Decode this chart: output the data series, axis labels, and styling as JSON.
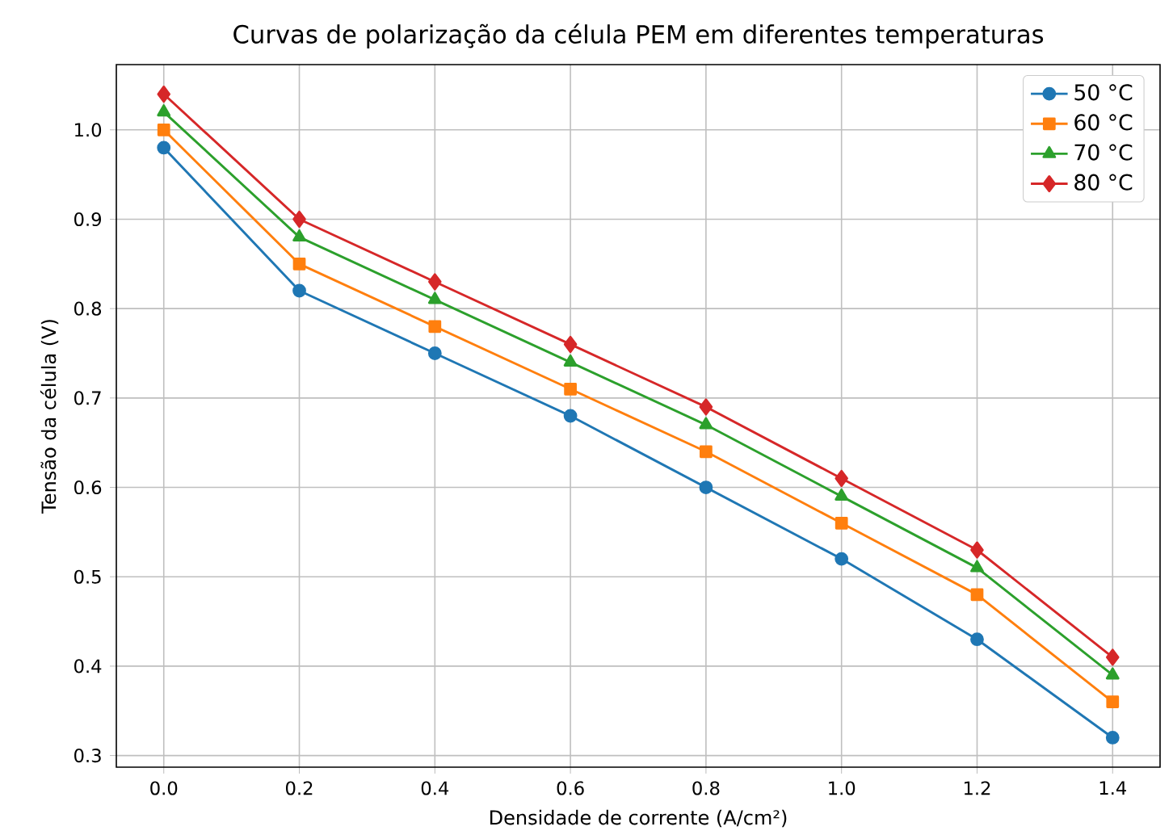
{
  "chart_data": {
    "type": "line",
    "title": "Curvas de polarização da célula PEM em diferentes temperaturas",
    "xlabel": "Densidade de corrente (A/cm²)",
    "ylabel": "Tensão da célula (V)",
    "x": [
      0.0,
      0.2,
      0.4,
      0.6,
      0.8,
      1.0,
      1.2,
      1.4
    ],
    "series": [
      {
        "name": "50 °C",
        "color": "#1f77b4",
        "marker": "circle",
        "values": [
          0.98,
          0.82,
          0.75,
          0.68,
          0.6,
          0.52,
          0.43,
          0.32
        ]
      },
      {
        "name": "60 °C",
        "color": "#ff7f0e",
        "marker": "square",
        "values": [
          1.0,
          0.85,
          0.78,
          0.71,
          0.64,
          0.56,
          0.48,
          0.36
        ]
      },
      {
        "name": "70 °C",
        "color": "#2ca02c",
        "marker": "triangle",
        "values": [
          1.02,
          0.88,
          0.81,
          0.74,
          0.67,
          0.59,
          0.51,
          0.39
        ]
      },
      {
        "name": "80 °C",
        "color": "#d62728",
        "marker": "diamond",
        "values": [
          1.04,
          0.9,
          0.83,
          0.76,
          0.69,
          0.61,
          0.53,
          0.41
        ]
      }
    ],
    "xlim": [
      -0.07,
      1.47
    ],
    "ylim": [
      0.287,
      1.073
    ],
    "xticks": [
      {
        "value": 0.0,
        "label": "0.0"
      },
      {
        "value": 0.2,
        "label": "0.2"
      },
      {
        "value": 0.4,
        "label": "0.4"
      },
      {
        "value": 0.6,
        "label": "0.6"
      },
      {
        "value": 0.8,
        "label": "0.8"
      },
      {
        "value": 1.0,
        "label": "1.0"
      },
      {
        "value": 1.2,
        "label": "1.2"
      },
      {
        "value": 1.4,
        "label": "1.4"
      }
    ],
    "yticks": [
      {
        "value": 0.3,
        "label": "0.3"
      },
      {
        "value": 0.4,
        "label": "0.4"
      },
      {
        "value": 0.5,
        "label": "0.5"
      },
      {
        "value": 0.6,
        "label": "0.6"
      },
      {
        "value": 0.7,
        "label": "0.7"
      },
      {
        "value": 0.8,
        "label": "0.8"
      },
      {
        "value": 0.9,
        "label": "0.9"
      },
      {
        "value": 1.0,
        "label": "1.0"
      }
    ],
    "grid": true,
    "legend": "top right",
    "line_style": "solid"
  }
}
